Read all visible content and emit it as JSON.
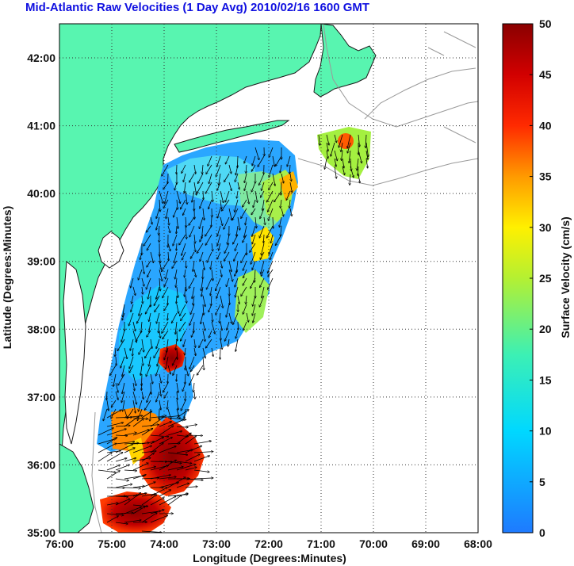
{
  "title": "Mid-Atlantic Raw Velocities (1 Day Avg) 2010/02/16 1600 GMT",
  "xlabel": "Longitude (Degrees:Minutes)",
  "ylabel": "Latitude (Degrees:Minutes)",
  "colorbar_label": "Surface Velocity (cm/s)",
  "x_ticks": [
    "76:00",
    "75:00",
    "74:00",
    "73:00",
    "72:00",
    "71:00",
    "70:00",
    "69:00",
    "68:00"
  ],
  "y_ticks": [
    "42:00",
    "41:00",
    "40:00",
    "39:00",
    "38:00",
    "37:00",
    "36:00",
    "35:00"
  ],
  "colorbar_ticks": [
    "50",
    "45",
    "40",
    "35",
    "30",
    "25",
    "20",
    "15",
    "10",
    "5",
    "0"
  ],
  "colors": {
    "land": "#58f5b0",
    "water": "#ffffff",
    "coastline": "#1a1a1a",
    "bathymetry": "#9a9a9a",
    "title": "#1010e0",
    "grid": "#333333"
  }
}
